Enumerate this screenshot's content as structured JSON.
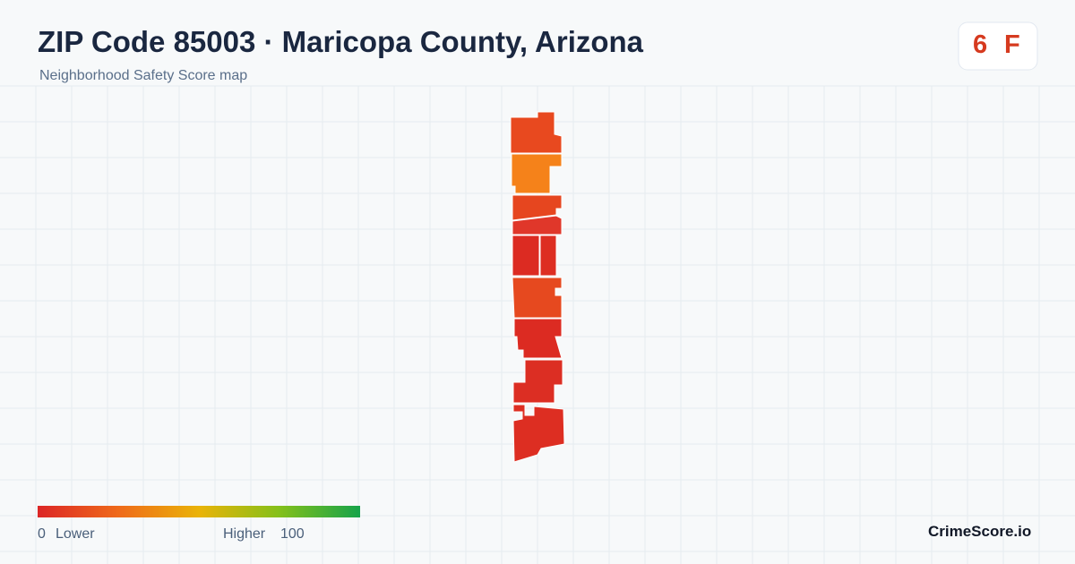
{
  "header": {
    "title": "ZIP Code 85003 · Maricopa County, Arizona",
    "subtitle": "Neighborhood Safety Score map"
  },
  "score": {
    "value": 6,
    "grade": "F"
  },
  "legend": {
    "min": 0,
    "min_label": "Lower",
    "max_label": "Higher",
    "max": 100
  },
  "brand": "CrimeScore.io"
}
